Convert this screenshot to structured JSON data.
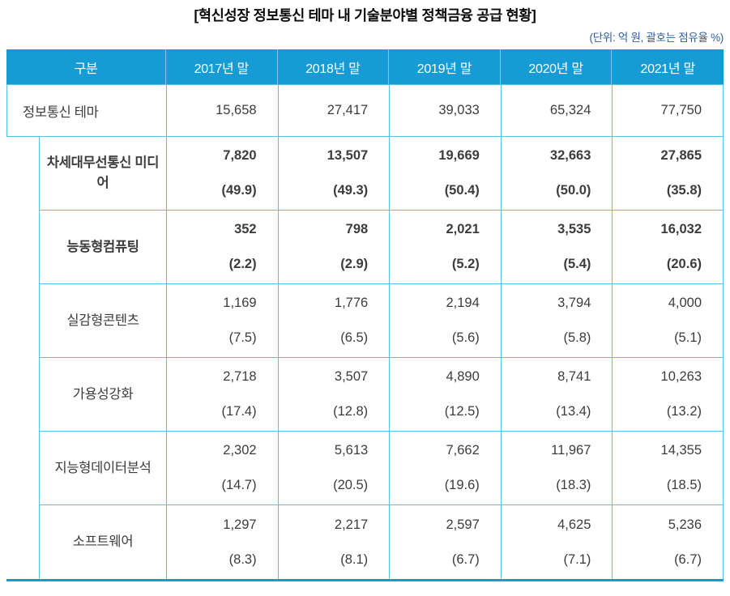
{
  "title": "[혁신성장 정보통신 테마 내 기술분야별 정책금융 공급 현황]",
  "unit_note": "(단위: 억 원, 괄호는 점유율 %)",
  "colors": {
    "header_bg": "#169bd5",
    "grid_line": "#5cbde7",
    "unit_note_text": "#2d5f9f"
  },
  "chart_data": {
    "type": "table",
    "title": "혁신성장 정보통신 테마 내 기술분야별 정책금융 공급 현황",
    "unit": "억 원, 괄호는 점유율 %",
    "columns": [
      "구분",
      "2017년 말",
      "2018년 말",
      "2019년 말",
      "2020년 말",
      "2021년 말"
    ],
    "summary_row": {
      "label": "정보통신 테마",
      "values": [
        "15,658",
        "27,417",
        "39,033",
        "65,324",
        "77,750"
      ]
    },
    "rows": [
      {
        "label": "차세대무선통신 미디어",
        "values": [
          "7,820",
          "13,507",
          "19,669",
          "32,663",
          "27,865"
        ],
        "shares": [
          "(49.9)",
          "(49.3)",
          "(50.4)",
          "(50.0)",
          "(35.8)"
        ]
      },
      {
        "label": "능동형컴퓨팅",
        "values": [
          "352",
          "798",
          "2,021",
          "3,535",
          "16,032"
        ],
        "shares": [
          "(2.2)",
          "(2.9)",
          "(5.2)",
          "(5.4)",
          "(20.6)"
        ]
      },
      {
        "label": "실감형콘텐츠",
        "values": [
          "1,169",
          "1,776",
          "2,194",
          "3,794",
          "4,000"
        ],
        "shares": [
          "(7.5)",
          "(6.5)",
          "(5.6)",
          "(5.8)",
          "(5.1)"
        ]
      },
      {
        "label": "가용성강화",
        "values": [
          "2,718",
          "3,507",
          "4,890",
          "8,741",
          "10,263"
        ],
        "shares": [
          "(17.4)",
          "(12.8)",
          "(12.5)",
          "(13.4)",
          "(13.2)"
        ]
      },
      {
        "label": "지능형데이터분석",
        "values": [
          "2,302",
          "5,613",
          "7,662",
          "11,967",
          "14,355"
        ],
        "shares": [
          "(14.7)",
          "(20.5)",
          "(19.6)",
          "(18.3)",
          "(18.5)"
        ]
      },
      {
        "label": "소프트웨어",
        "values": [
          "1,297",
          "2,217",
          "2,597",
          "4,625",
          "5,236"
        ],
        "shares": [
          "(8.3)",
          "(8.1)",
          "(6.7)",
          "(7.1)",
          "(6.7)"
        ]
      }
    ]
  }
}
